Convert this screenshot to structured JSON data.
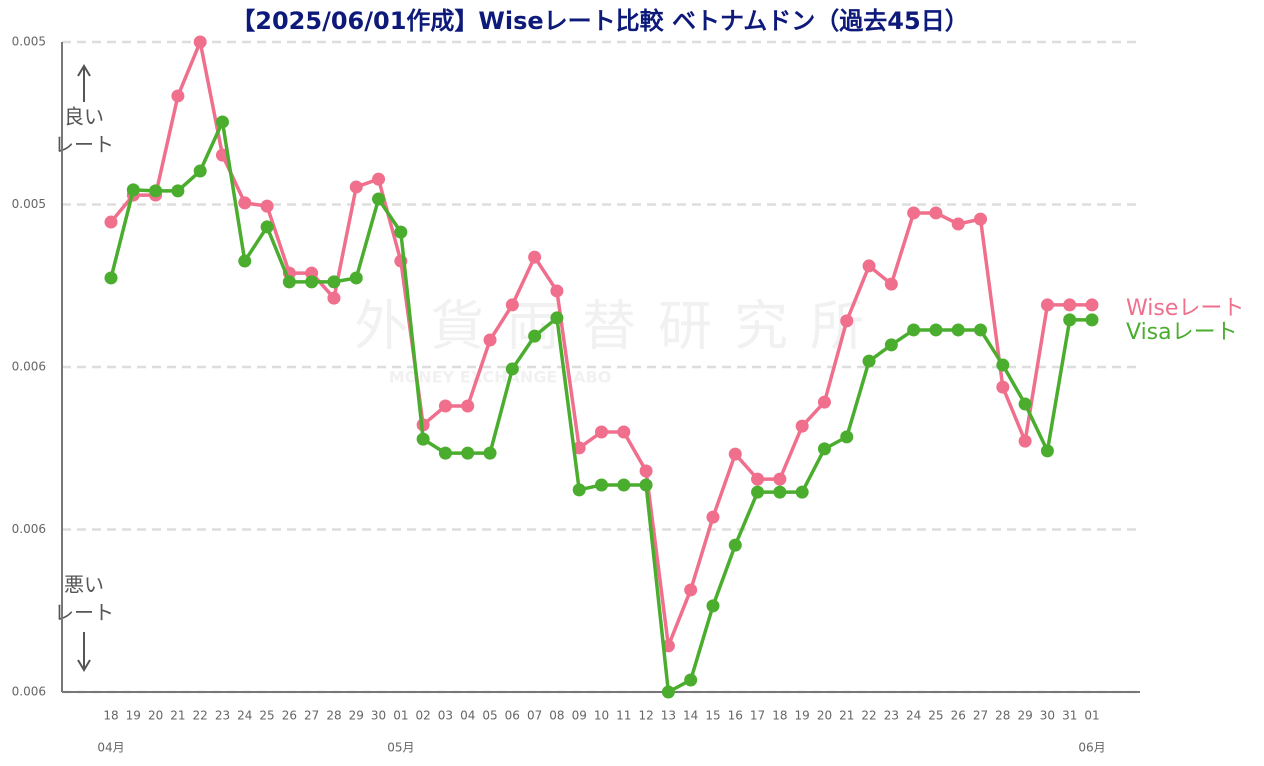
{
  "chart_data": {
    "type": "line",
    "title": "【2025/06/01作成】Wiseレート比較 ベトナムドン（過去45日）",
    "categories": [
      "18",
      "19",
      "20",
      "21",
      "22",
      "23",
      "24",
      "25",
      "26",
      "27",
      "28",
      "29",
      "30",
      "01",
      "02",
      "03",
      "04",
      "05",
      "06",
      "07",
      "08",
      "09",
      "10",
      "11",
      "12",
      "13",
      "14",
      "15",
      "16",
      "17",
      "18",
      "19",
      "20",
      "21",
      "22",
      "23",
      "24",
      "25",
      "26",
      "27",
      "28",
      "29",
      "30",
      "31",
      "01"
    ],
    "month_labels": [
      "04月",
      null,
      null,
      null,
      null,
      null,
      null,
      null,
      null,
      null,
      null,
      null,
      null,
      "05月",
      null,
      null,
      null,
      null,
      null,
      null,
      null,
      null,
      null,
      null,
      null,
      null,
      null,
      null,
      null,
      null,
      null,
      null,
      null,
      null,
      null,
      null,
      null,
      null,
      null,
      null,
      null,
      null,
      null,
      null,
      "06月"
    ],
    "series": [
      {
        "name": "Wiseレート",
        "color": "#ef6f8c",
        "values": [
          0.0054554,
          0.0054471,
          0.0054471,
          0.0054166,
          0.0054,
          0.0054348,
          0.0054495,
          0.0054505,
          0.0054711,
          0.0054711,
          0.0054788,
          0.0054446,
          0.0054422,
          0.0054674,
          0.0055178,
          0.005512,
          0.005512,
          0.0054917,
          0.0054809,
          0.0054662,
          0.0054766,
          0.0055249,
          0.00552,
          0.00552,
          0.005532,
          0.0055858,
          0.0055686,
          0.0055462,
          0.0055268,
          0.0055345,
          0.0055345,
          0.0055182,
          0.0055108,
          0.0054858,
          0.0054689,
          0.0054745,
          0.0054526,
          0.0054526,
          0.005456,
          0.0054545,
          0.0055062,
          0.0055228,
          0.0054809,
          0.0054809,
          0.0054809
        ]
      },
      {
        "name": "Visaレート",
        "color": "#4aad2e",
        "values": [
          0.0054726,
          0.0054455,
          0.0054458,
          0.0054458,
          0.0054397,
          0.0054246,
          0.0054674,
          0.0054569,
          0.0054738,
          0.0054738,
          0.0054738,
          0.0054726,
          0.0054483,
          0.0054585,
          0.0055222,
          0.0055265,
          0.0055265,
          0.0055265,
          0.0055006,
          0.0054905,
          0.0054849,
          0.0055378,
          0.0055363,
          0.0055363,
          0.0055363,
          0.0056,
          0.0055963,
          0.0055735,
          0.0055548,
          0.0055385,
          0.0055385,
          0.0055385,
          0.0055252,
          0.0055215,
          0.0054982,
          0.0054932,
          0.0054886,
          0.0054886,
          0.0054886,
          0.0054886,
          0.0054994,
          0.0055114,
          0.0055258,
          0.0054855,
          0.0054855
        ]
      }
    ],
    "ylim": [
      0.0054,
      0.0056
    ],
    "y_inverted": true,
    "yticks": [
      {
        "value": 0.0054,
        "label": "0.005"
      },
      {
        "value": 0.00545,
        "label": "0.005"
      },
      {
        "value": 0.0055,
        "label": "0.006"
      },
      {
        "value": 0.00555,
        "label": "0.006"
      },
      {
        "value": 0.0056,
        "label": "0.006"
      }
    ],
    "grid": true,
    "annotations": {
      "good": [
        "良い",
        "レート"
      ],
      "bad": [
        "悪い",
        "レート"
      ]
    },
    "watermark": {
      "main": "外貨両替研究所",
      "sub": "MONEY EXCHANGE LABO"
    }
  }
}
